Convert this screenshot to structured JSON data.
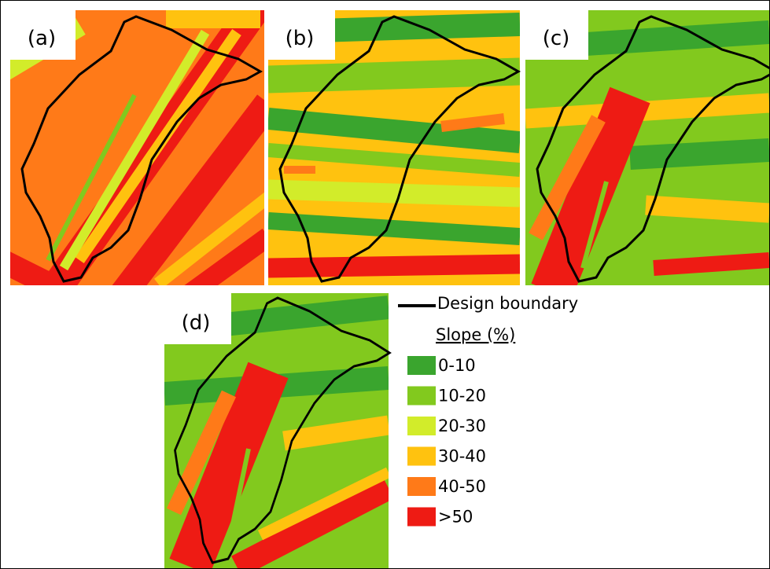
{
  "panels": [
    {
      "label": "(a)"
    },
    {
      "label": "(b)"
    },
    {
      "label": "(c)"
    },
    {
      "label": "(d)"
    }
  ],
  "legend": {
    "boundary": "Design boundary",
    "title": "Slope (%)",
    "classes": [
      {
        "label": "0-10",
        "color": "#3aa52e"
      },
      {
        "label": "10-20",
        "color": "#82c91e"
      },
      {
        "label": "20-30",
        "color": "#d2ec2a"
      },
      {
        "label": "30-40",
        "color": "#ffc20f"
      },
      {
        "label": "40-50",
        "color": "#ff7a18"
      },
      {
        "label": ">50",
        "color": "#ee1b14"
      }
    ]
  }
}
